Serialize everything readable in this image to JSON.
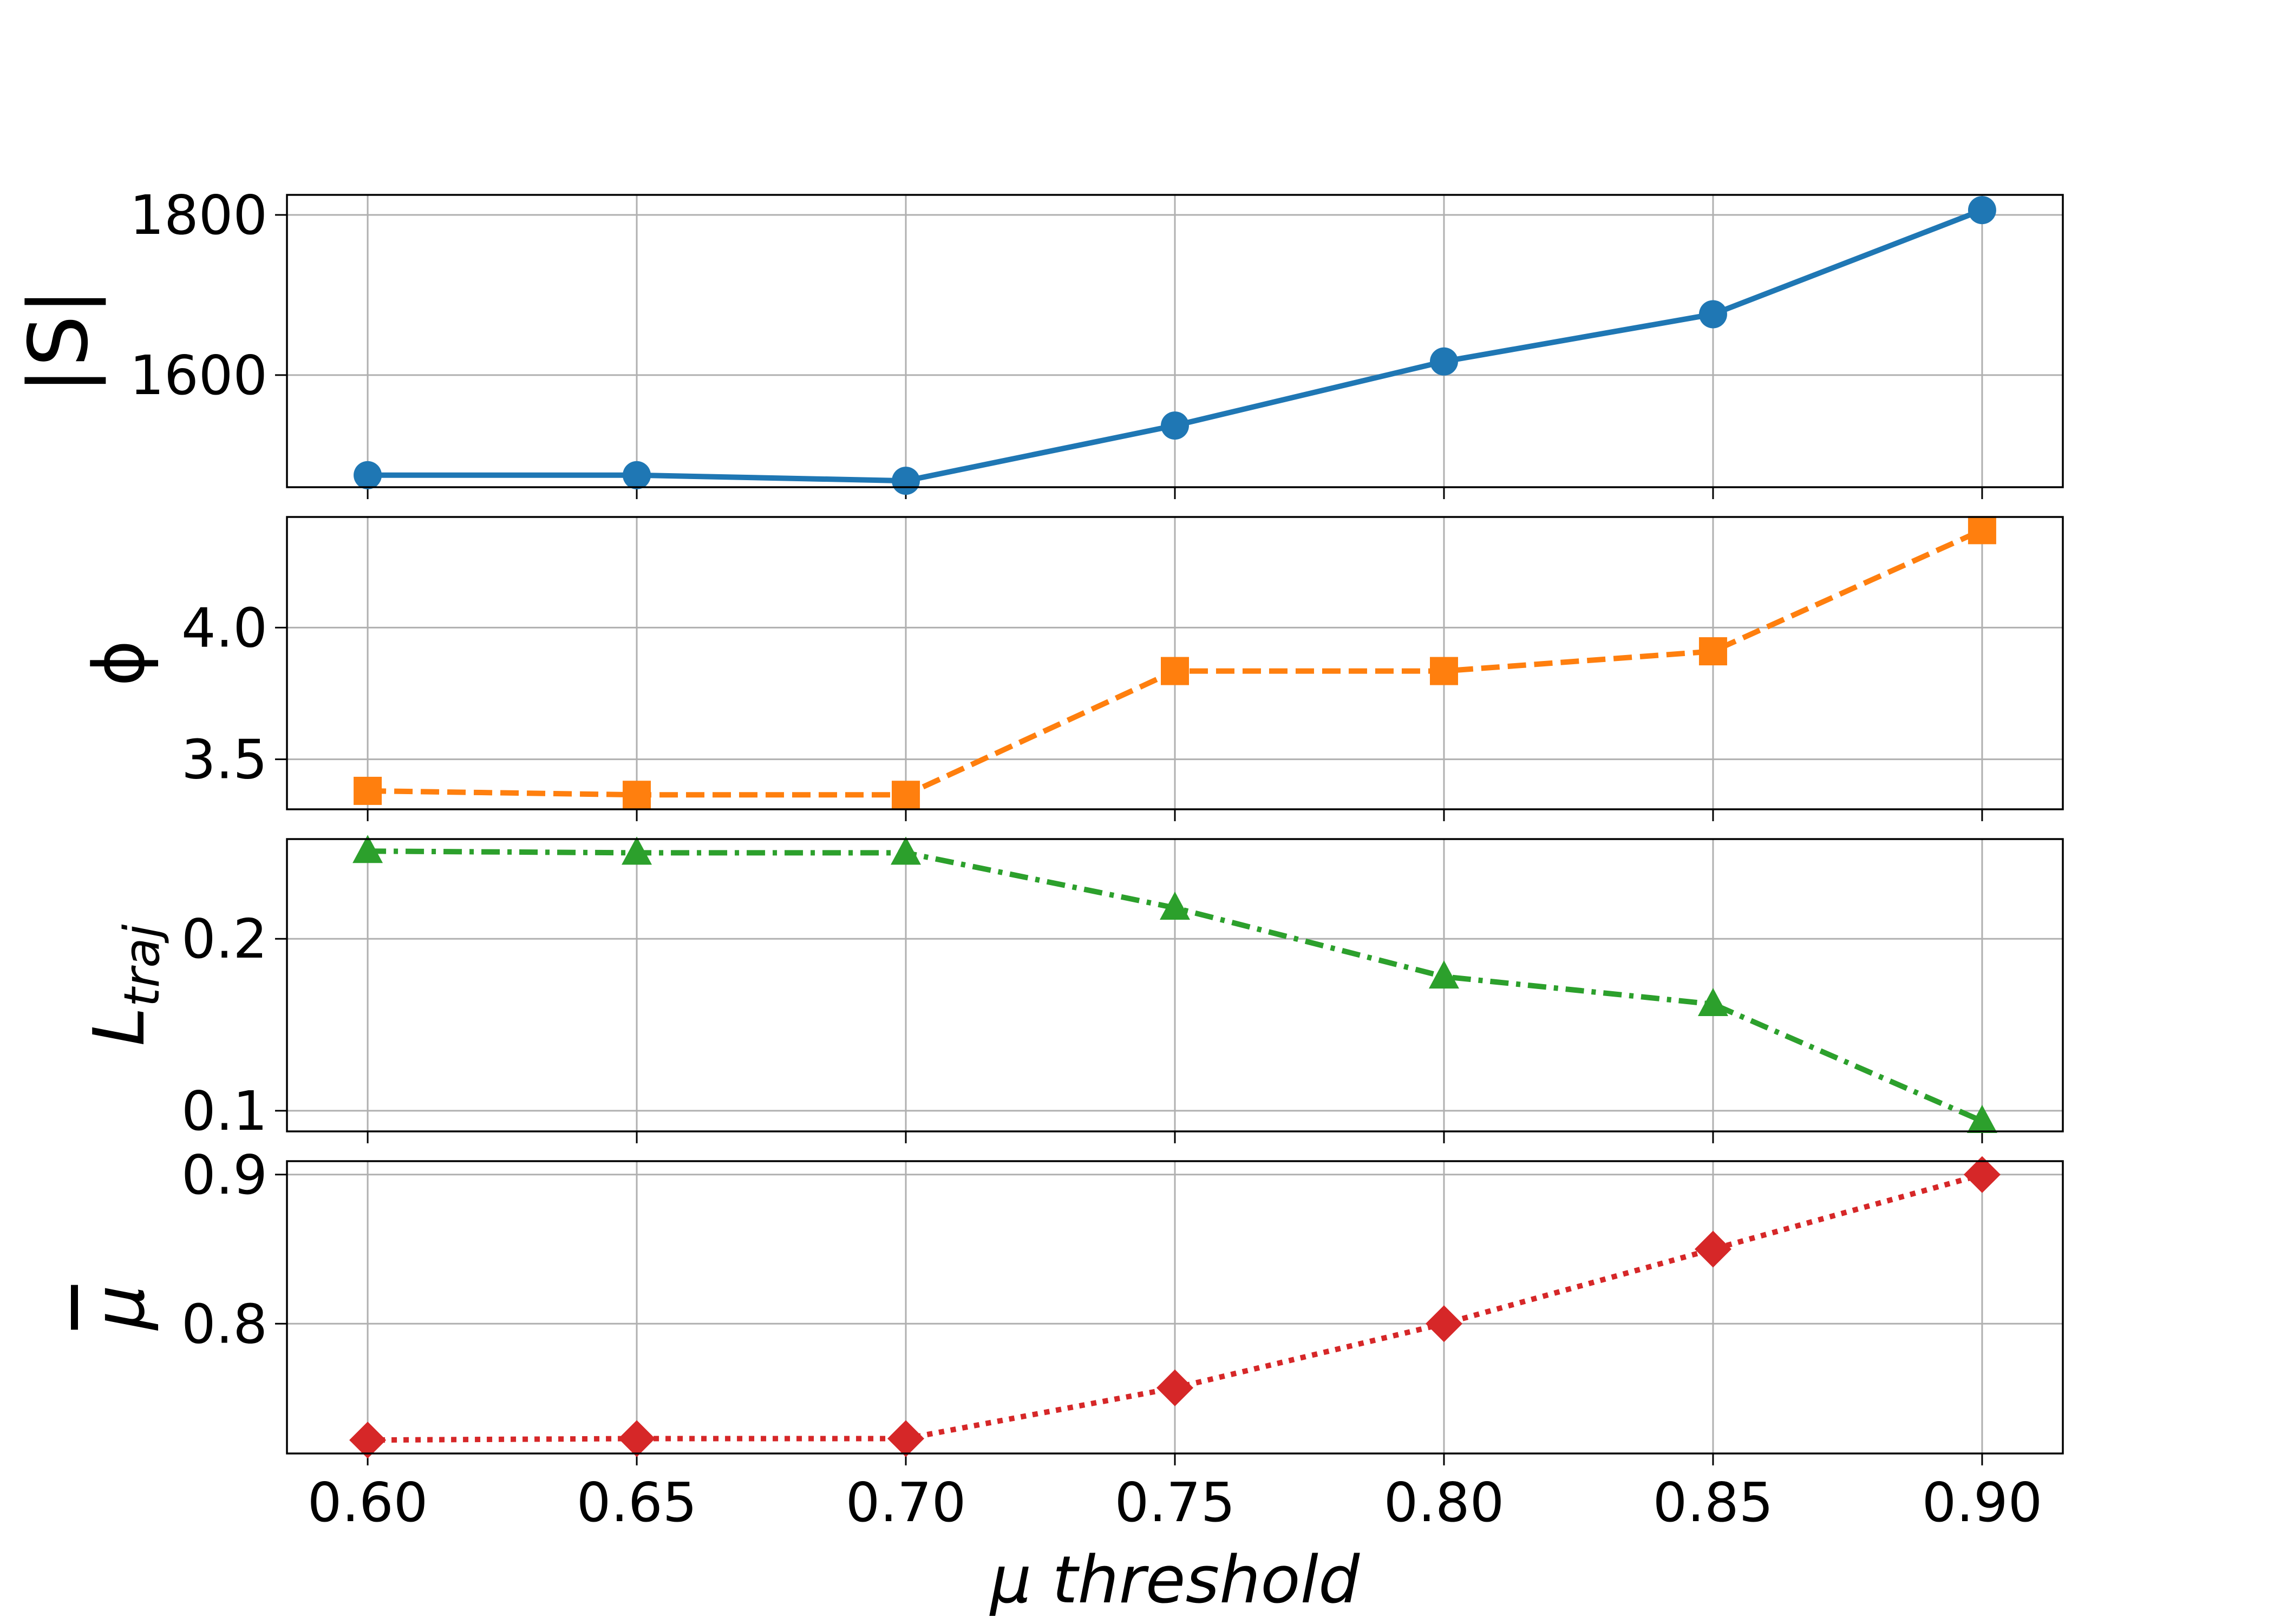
{
  "chart_data": {
    "type": "line",
    "layout": "4 vertically stacked subplots sharing x axis",
    "grid": true,
    "xlabel": "μ threshold",
    "x": [
      0.6,
      0.65,
      0.7,
      0.75,
      0.8,
      0.85,
      0.9
    ],
    "x_tick_labels": [
      "0.60",
      "0.65",
      "0.70",
      "0.75",
      "0.80",
      "0.85",
      "0.90"
    ],
    "xlim": [
      0.585,
      0.915
    ],
    "subplots": [
      {
        "ylabel": "|S|",
        "values": [
          1475,
          1475,
          1468,
          1537,
          1617,
          1676,
          1806
        ],
        "ylim": [
          1460,
          1825
        ],
        "yticks": [
          1600,
          1800
        ],
        "ytick_labels": [
          "1600",
          "1800"
        ],
        "color": "#1f77b4",
        "linestyle": "solid",
        "marker": "circle"
      },
      {
        "ylabel": "ϕ",
        "values": [
          3.38,
          3.365,
          3.365,
          3.835,
          3.835,
          3.91,
          4.37
        ],
        "ylim": [
          3.31,
          4.42
        ],
        "yticks": [
          3.5,
          4.0
        ],
        "ytick_labels": [
          "3.5",
          "4.0"
        ],
        "color": "#ff7f0e",
        "linestyle": "dashed",
        "marker": "square"
      },
      {
        "ylabel": "L",
        "ylabel_subscript": "traj",
        "values": [
          0.251,
          0.25,
          0.25,
          0.218,
          0.178,
          0.162,
          0.094
        ],
        "ylim": [
          0.088,
          0.258
        ],
        "yticks": [
          0.1,
          0.2
        ],
        "ytick_labels": [
          "0.1",
          "0.2"
        ],
        "color": "#2ca02c",
        "linestyle": "dashdot",
        "marker": "triangle"
      },
      {
        "ylabel": "μ",
        "ylabel_overline": true,
        "values": [
          0.722,
          0.723,
          0.723,
          0.757,
          0.8,
          0.85,
          0.9
        ],
        "ylim": [
          0.713,
          0.909
        ],
        "yticks": [
          0.8,
          0.9
        ],
        "ytick_labels": [
          "0.8",
          "0.9"
        ],
        "color": "#d62728",
        "linestyle": "dotted",
        "marker": "diamond"
      }
    ]
  }
}
